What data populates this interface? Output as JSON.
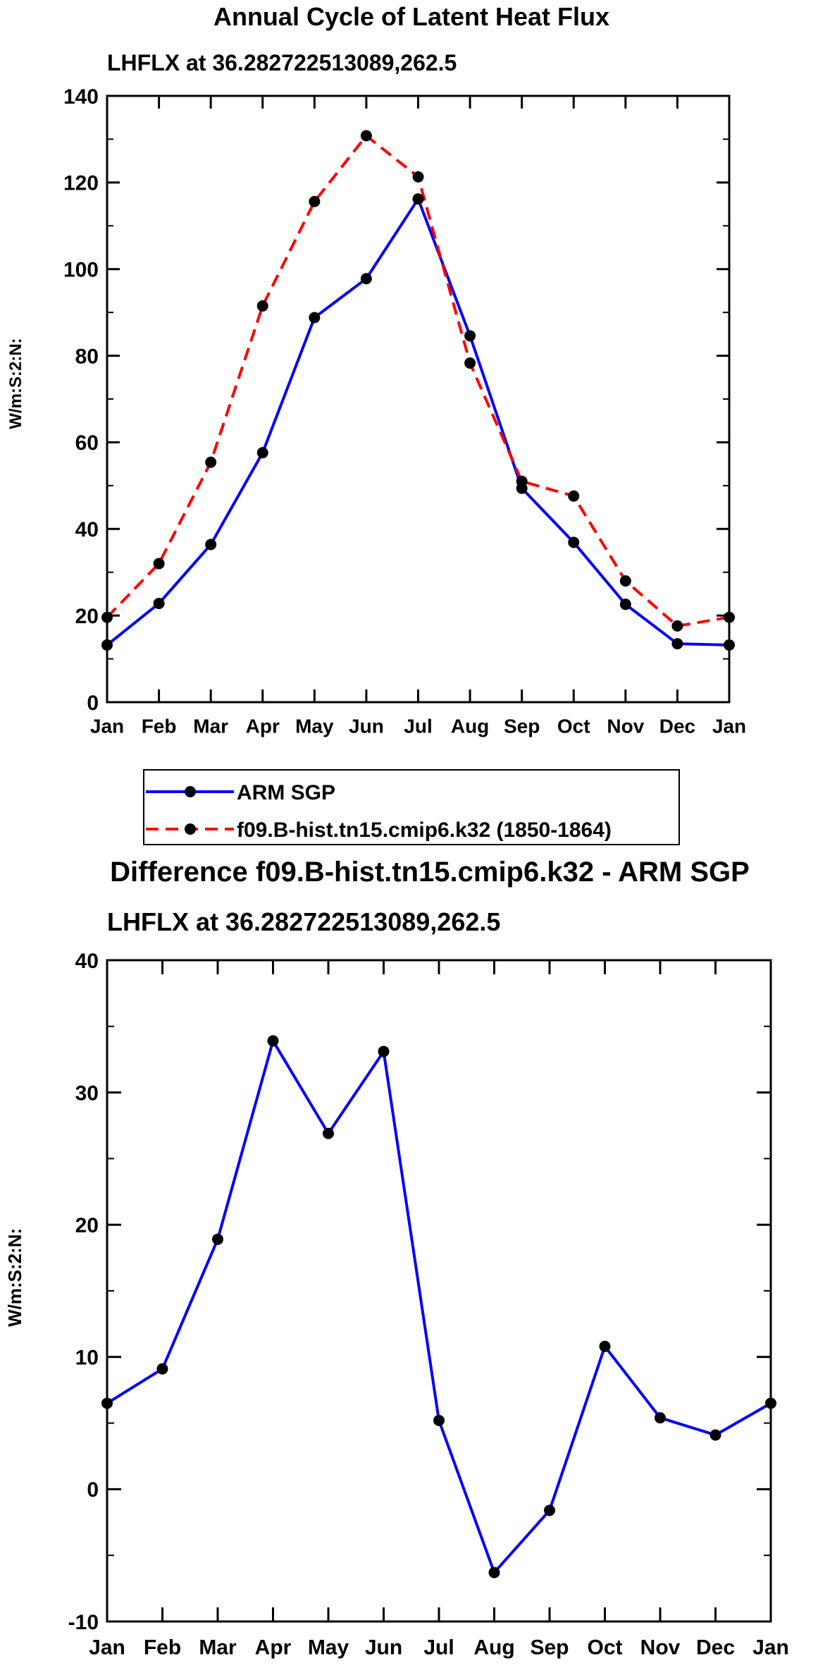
{
  "chart_data": [
    {
      "type": "line",
      "title": "Annual Cycle of Latent Heat Flux",
      "subtitle": "LHFLX at 36.282722513089,262.5",
      "ylabel": "W/m:S:2:N:",
      "xlabel": "",
      "categories": [
        "Jan",
        "Feb",
        "Mar",
        "Apr",
        "May",
        "Jun",
        "Jul",
        "Aug",
        "Sep",
        "Oct",
        "Nov",
        "Dec",
        "Jan"
      ],
      "ylim": [
        0,
        140
      ],
      "yticks": [
        "0",
        "20",
        "40",
        "60",
        "80",
        "100",
        "120",
        "140"
      ],
      "series": [
        {
          "name": "ARM SGP",
          "color": "#0000ff",
          "dashed": false,
          "values": [
            13.2,
            22.8,
            36.4,
            57.6,
            88.8,
            97.8,
            116.2,
            84.6,
            49.4,
            36.9,
            22.6,
            13.5,
            13.2
          ]
        },
        {
          "name": "f09.B-hist.tn15.cmip6.k32 (1850-1864)",
          "color": "#ff0000",
          "dashed": true,
          "values": [
            19.6,
            32.0,
            55.4,
            91.5,
            115.6,
            130.8,
            121.3,
            78.3,
            51.0,
            47.6,
            28.0,
            17.6,
            19.6
          ]
        }
      ]
    },
    {
      "type": "line",
      "title": "Difference f09.B-hist.tn15.cmip6.k32 - ARM SGP",
      "subtitle": "LHFLX at 36.282722513089,262.5",
      "ylabel": "W/m:S:2:N:",
      "xlabel": "",
      "categories": [
        "Jan",
        "Feb",
        "Mar",
        "Apr",
        "May",
        "Jun",
        "Jul",
        "Aug",
        "Sep",
        "Oct",
        "Nov",
        "Dec",
        "Jan"
      ],
      "ylim": [
        -10,
        40
      ],
      "yticks": [
        "-10",
        "0",
        "10",
        "20",
        "30",
        "40"
      ],
      "series": [
        {
          "name": "Difference",
          "color": "#0000ff",
          "dashed": false,
          "values": [
            6.5,
            9.1,
            18.9,
            33.9,
            26.9,
            33.1,
            5.2,
            -6.3,
            -1.6,
            10.8,
            5.4,
            4.1,
            6.5
          ]
        }
      ]
    }
  ]
}
